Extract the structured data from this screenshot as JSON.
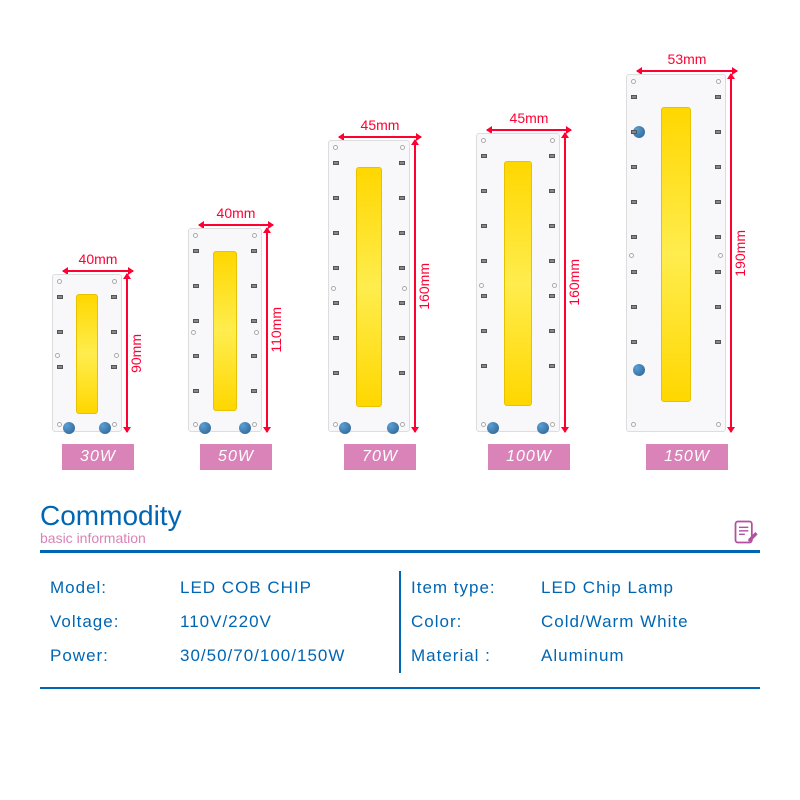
{
  "chips": [
    {
      "width_label": "40mm",
      "height_label": "90mm",
      "wattage": "30W",
      "chip_w": 70,
      "chip_h": 158,
      "strip_w": 22,
      "strip_h": 120,
      "width_line_w": 70,
      "height_line_h": 158,
      "caps_bottom": true
    },
    {
      "width_label": "40mm",
      "height_label": "110mm",
      "wattage": "50W",
      "chip_w": 74,
      "chip_h": 204,
      "strip_w": 24,
      "strip_h": 160,
      "width_line_w": 74,
      "height_line_h": 204,
      "caps_bottom": true
    },
    {
      "width_label": "45mm",
      "height_label": "160mm",
      "wattage": "70W",
      "chip_w": 82,
      "chip_h": 292,
      "strip_w": 26,
      "strip_h": 240,
      "width_line_w": 82,
      "height_line_h": 292,
      "caps_bottom": true
    },
    {
      "width_label": "45mm",
      "height_label": "160mm",
      "wattage": "100W",
      "chip_w": 84,
      "chip_h": 299,
      "strip_w": 28,
      "strip_h": 245,
      "width_line_w": 84,
      "height_line_h": 299,
      "caps_bottom": true
    },
    {
      "width_label": "53mm",
      "height_label": "190mm",
      "wattage": "150W",
      "chip_w": 100,
      "chip_h": 358,
      "strip_w": 30,
      "strip_h": 295,
      "width_line_w": 100,
      "height_line_h": 358,
      "caps_bottom": false
    }
  ],
  "colors": {
    "dim_red": "#ff0033",
    "badge_pink": "#d983b8",
    "spec_blue": "#0066b3",
    "led_yellow": "#ffd700",
    "cap_blue": "#2b5f8e"
  },
  "section": {
    "title": "Commodity",
    "subtitle": "basic information"
  },
  "specs_left": [
    {
      "key": "Model:",
      "val": "LED COB CHIP"
    },
    {
      "key": "Voltage:",
      "val": "110V/220V"
    },
    {
      "key": "Power:",
      "val": "30/50/70/100/150W"
    }
  ],
  "specs_right": [
    {
      "key": "Item type:",
      "val": "LED Chip Lamp"
    },
    {
      "key": "Color:",
      "val": "Cold/Warm White"
    },
    {
      "key": "Material :",
      "val": "Aluminum"
    }
  ]
}
